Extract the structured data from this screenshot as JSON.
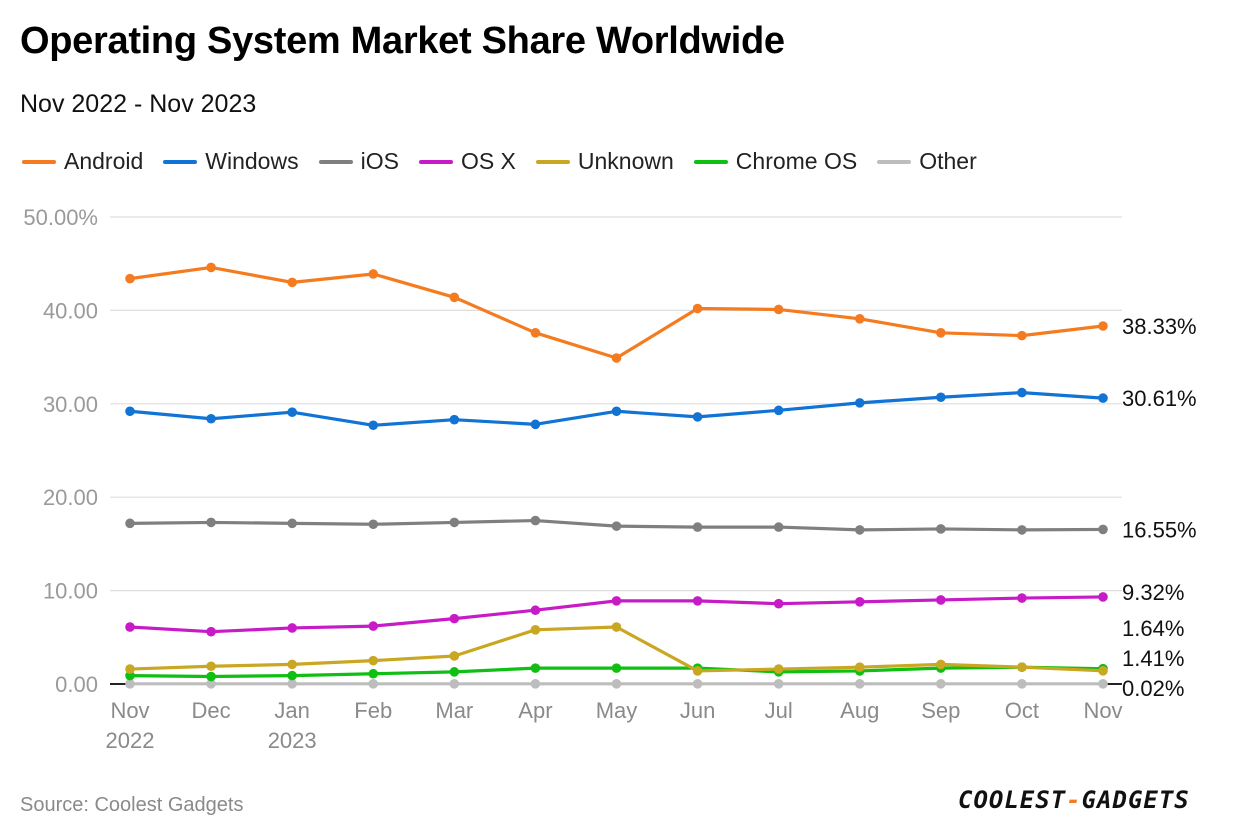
{
  "title": "Operating System Market Share Worldwide",
  "subtitle": "Nov 2022 - Nov 2023",
  "source": "Source: Coolest Gadgets",
  "logo": {
    "part1": "COOLEST",
    "separator": "-",
    "part2": "GADGETS"
  },
  "colors": {
    "android": "#f47b20",
    "windows": "#1173d4",
    "ios": "#7f7f7f",
    "osx": "#c81bc8",
    "unknown": "#c9a722",
    "chromeos": "#0fbf12",
    "other": "#bdbdbd"
  },
  "legend": [
    {
      "name": "Android",
      "color": "#f47b20"
    },
    {
      "name": "Windows",
      "color": "#1173d4"
    },
    {
      "name": "iOS",
      "color": "#7f7f7f"
    },
    {
      "name": "OS X",
      "color": "#c81bc8"
    },
    {
      "name": "Unknown",
      "color": "#c9a722"
    },
    {
      "name": "Chrome OS",
      "color": "#0fbf12"
    },
    {
      "name": "Other",
      "color": "#bdbdbd"
    }
  ],
  "chart_data": {
    "type": "line",
    "title": "Operating System Market Share Worldwide",
    "subtitle": "Nov 2022 - Nov 2023",
    "categories": [
      "Nov",
      "Dec",
      "Jan",
      "Feb",
      "Mar",
      "Apr",
      "May",
      "Jun",
      "Jul",
      "Aug",
      "Sep",
      "Oct",
      "Nov"
    ],
    "category_sublabels": [
      "2022",
      "",
      "2023",
      "",
      "",
      "",
      "",
      "",
      "",
      "",
      "",
      "",
      ""
    ],
    "ylim": [
      0,
      50
    ],
    "yticks": [
      0,
      10,
      20,
      30,
      40,
      50
    ],
    "ytick_labels": [
      "0.00",
      "10.00",
      "20.00",
      "30.00",
      "40.00",
      "50.00%"
    ],
    "xlabel": "",
    "ylabel": "",
    "grid": true,
    "legend_position": "top-left",
    "series": [
      {
        "name": "Android",
        "color": "#f47b20",
        "values": [
          43.4,
          44.6,
          43.0,
          43.9,
          41.4,
          37.6,
          34.9,
          40.2,
          40.1,
          39.1,
          37.6,
          37.3,
          38.33
        ],
        "end_label": "38.33%"
      },
      {
        "name": "Windows",
        "color": "#1173d4",
        "values": [
          29.2,
          28.4,
          29.1,
          27.7,
          28.3,
          27.8,
          29.2,
          28.6,
          29.3,
          30.1,
          30.7,
          31.2,
          30.61
        ],
        "end_label": "30.61%"
      },
      {
        "name": "iOS",
        "color": "#7f7f7f",
        "values": [
          17.2,
          17.3,
          17.2,
          17.1,
          17.3,
          17.5,
          16.9,
          16.8,
          16.8,
          16.5,
          16.6,
          16.5,
          16.55
        ],
        "end_label": "16.55%"
      },
      {
        "name": "OS X",
        "color": "#c81bc8",
        "values": [
          6.1,
          5.6,
          6.0,
          6.2,
          7.0,
          7.9,
          8.9,
          8.9,
          8.6,
          8.8,
          9.0,
          9.2,
          9.32
        ],
        "end_label": "9.32%"
      },
      {
        "name": "Unknown",
        "color": "#c9a722",
        "values": [
          1.6,
          1.9,
          2.1,
          2.5,
          3.0,
          5.8,
          6.1,
          1.4,
          1.6,
          1.8,
          2.1,
          1.8,
          1.41
        ],
        "end_label": "1.41%"
      },
      {
        "name": "Chrome OS",
        "color": "#0fbf12",
        "values": [
          0.9,
          0.8,
          0.9,
          1.1,
          1.3,
          1.7,
          1.7,
          1.7,
          1.3,
          1.4,
          1.7,
          1.8,
          1.64
        ],
        "end_label": "1.64%"
      },
      {
        "name": "Other",
        "color": "#bdbdbd",
        "values": [
          0.02,
          0.02,
          0.02,
          0.02,
          0.02,
          0.02,
          0.02,
          0.02,
          0.02,
          0.02,
          0.02,
          0.02,
          0.02
        ],
        "end_label": "0.02%"
      }
    ]
  }
}
